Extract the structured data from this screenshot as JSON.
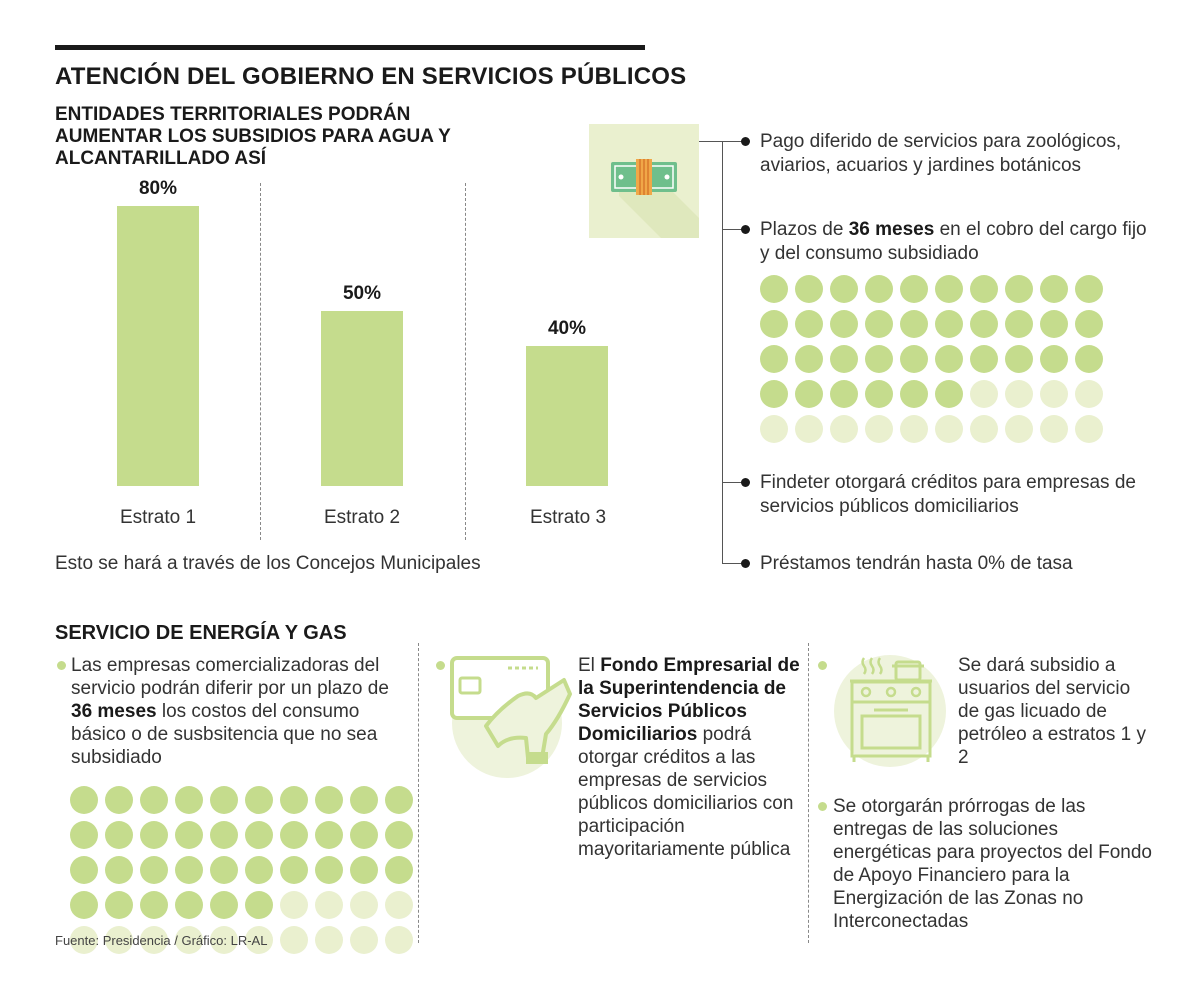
{
  "header": {
    "title": "ATENCIÓN DEL GOBIERNO EN SERVICIOS PÚBLICOS",
    "subtitle": "ENTIDADES TERRITORIALES PODRÁN AUMENTAR LOS SUBSIDIOS PARA AGUA Y ALCANTARILLADO ASÍ"
  },
  "chart_data": {
    "type": "bar",
    "categories": [
      "Estrato 1",
      "Estrato 2",
      "Estrato 3"
    ],
    "values": [
      80,
      50,
      40
    ],
    "value_labels": [
      "80%",
      "50%",
      "40%"
    ],
    "title": "ENTIDADES TERRITORIALES PODRÁN AUMENTAR LOS SUBSIDIOS PARA AGUA Y ALCANTARILLADO ASÍ",
    "xlabel": "",
    "ylabel": "",
    "ylim": [
      0,
      80
    ]
  },
  "water_note": "Esto se hará a través de los Concejos Municipales",
  "right_panel": {
    "icon": "money-bill-icon",
    "items": [
      {
        "pre": "Pago diferido de servicios para zoológicos, aviarios, acuarios y jardines botánicos"
      },
      {
        "pre": "Plazos de ",
        "bold": "36 meses",
        "post": " en el cobro del cargo fijo y del consumo subsidiado"
      },
      {
        "pre": "Findeter otorgará créditos para empresas de servicios públicos domiciliarios"
      },
      {
        "pre": "Préstamos tendrán hasta 0% de tasa"
      }
    ],
    "dot_grid": {
      "total": 50,
      "filled": 36,
      "columns": 10
    }
  },
  "energy": {
    "title": "SERVICIO DE ENERGÍA Y GAS",
    "col1": {
      "pre": "Las empresas comercializadoras del servicio podrán diferir por un plazo de ",
      "bold": "36 meses",
      "post": " los costos del consumo básico o de susbsitencia que no sea subsidiado"
    },
    "dot_grid": {
      "total": 50,
      "filled": 36,
      "columns": 10
    },
    "col2": {
      "pre": "El ",
      "bold": "Fondo Empresarial de la Superintendencia de Servicios Públicos Domiciliarios",
      "post": " podrá otorgar créditos a las empresas de servicios públicos domiciliarios con participación mayoritariamente pública",
      "icon": "credit-card-hand-icon"
    },
    "col3a": {
      "text": "Se dará subsidio a usuarios del servicio de gas licuado de petróleo a estratos 1 y 2",
      "icon": "gas-stove-icon"
    },
    "col3b": {
      "text": "Se otorgarán prórrogas de las entregas de las soluciones energéticas para proyectos del Fondo de Apoyo Financiero para la Energización de las Zonas no Interconectadas"
    }
  },
  "source": "Fuente: Presidencia / Gráfico: LR-AL",
  "colors": {
    "accent": "#c5dc8d",
    "accent_light": "#eaf0cf",
    "dark": "#1a1a1a"
  }
}
